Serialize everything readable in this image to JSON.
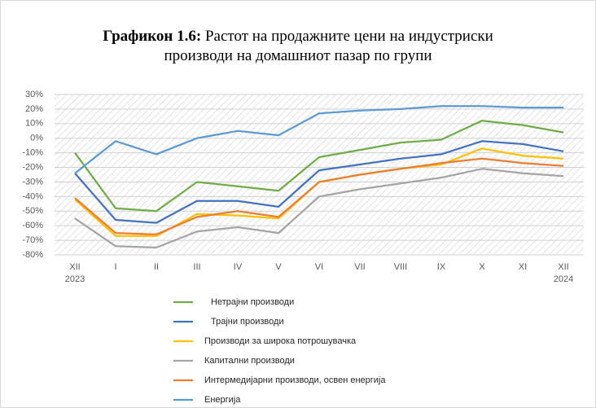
{
  "chart_data": {
    "type": "line",
    "title_label": "Графикон 1.6:",
    "title": "Растот на продажните цени на индустриски производи на домашниот пазар по групи",
    "categories": [
      "XII\n2023",
      "I",
      "II",
      "III",
      "IV",
      "V",
      "VI",
      "VII",
      "VIII",
      "IX",
      "X",
      "XI",
      "XII\n2024"
    ],
    "series": [
      {
        "name": "Нетрајни производи",
        "color": "#70ad47",
        "values": [
          -10,
          -48,
          -50,
          -30,
          -33,
          -36,
          -13,
          -8,
          -3,
          -1,
          12,
          9,
          4
        ]
      },
      {
        "name": "Трајни производи",
        "color": "#4472c4",
        "values": [
          -24,
          -56,
          -58,
          -43,
          -43,
          -47,
          -22,
          -18,
          -14,
          -11,
          -2,
          -4,
          -9
        ]
      },
      {
        "name": "Производи за широка потрошувачка",
        "color": "#ffc000",
        "values": [
          -42,
          -67,
          -67,
          -52,
          -53,
          -55,
          -30,
          -25,
          -21,
          -18,
          -7,
          -12,
          -14
        ]
      },
      {
        "name": "Капитални производи",
        "color": "#a5a5a5",
        "values": [
          -55,
          -74,
          -75,
          -64,
          -61,
          -65,
          -40,
          -35,
          -31,
          -27,
          -21,
          -24,
          -26
        ]
      },
      {
        "name": "Интермедијарни производи, освен енергија",
        "color": "#ed7d31",
        "values": [
          -41,
          -65,
          -66,
          -54,
          -50,
          -54,
          -30,
          -25,
          -21,
          -17,
          -14,
          -17,
          -19
        ]
      },
      {
        "name": "Енергија",
        "color": "#5b9bd5",
        "values": [
          -24,
          -2,
          -11,
          0,
          5,
          2,
          17,
          19,
          20,
          22,
          22,
          21,
          21
        ]
      }
    ],
    "ylim": [
      -80,
      30
    ],
    "yticks": [
      {
        "value": -80,
        "label": "-80%"
      },
      {
        "value": -70,
        "label": "-70%"
      },
      {
        "value": -60,
        "label": "-60%"
      },
      {
        "value": -50,
        "label": "-50%"
      },
      {
        "value": -40,
        "label": "-40%"
      },
      {
        "value": -30,
        "label": "-30%"
      },
      {
        "value": -20,
        "label": "-20%"
      },
      {
        "value": -10,
        "label": "-10%"
      },
      {
        "value": 0,
        "label": "0%"
      },
      {
        "value": 10,
        "label": "10%"
      },
      {
        "value": 20,
        "label": "20%"
      },
      {
        "value": 30,
        "label": "30%"
      }
    ],
    "grid": true
  }
}
